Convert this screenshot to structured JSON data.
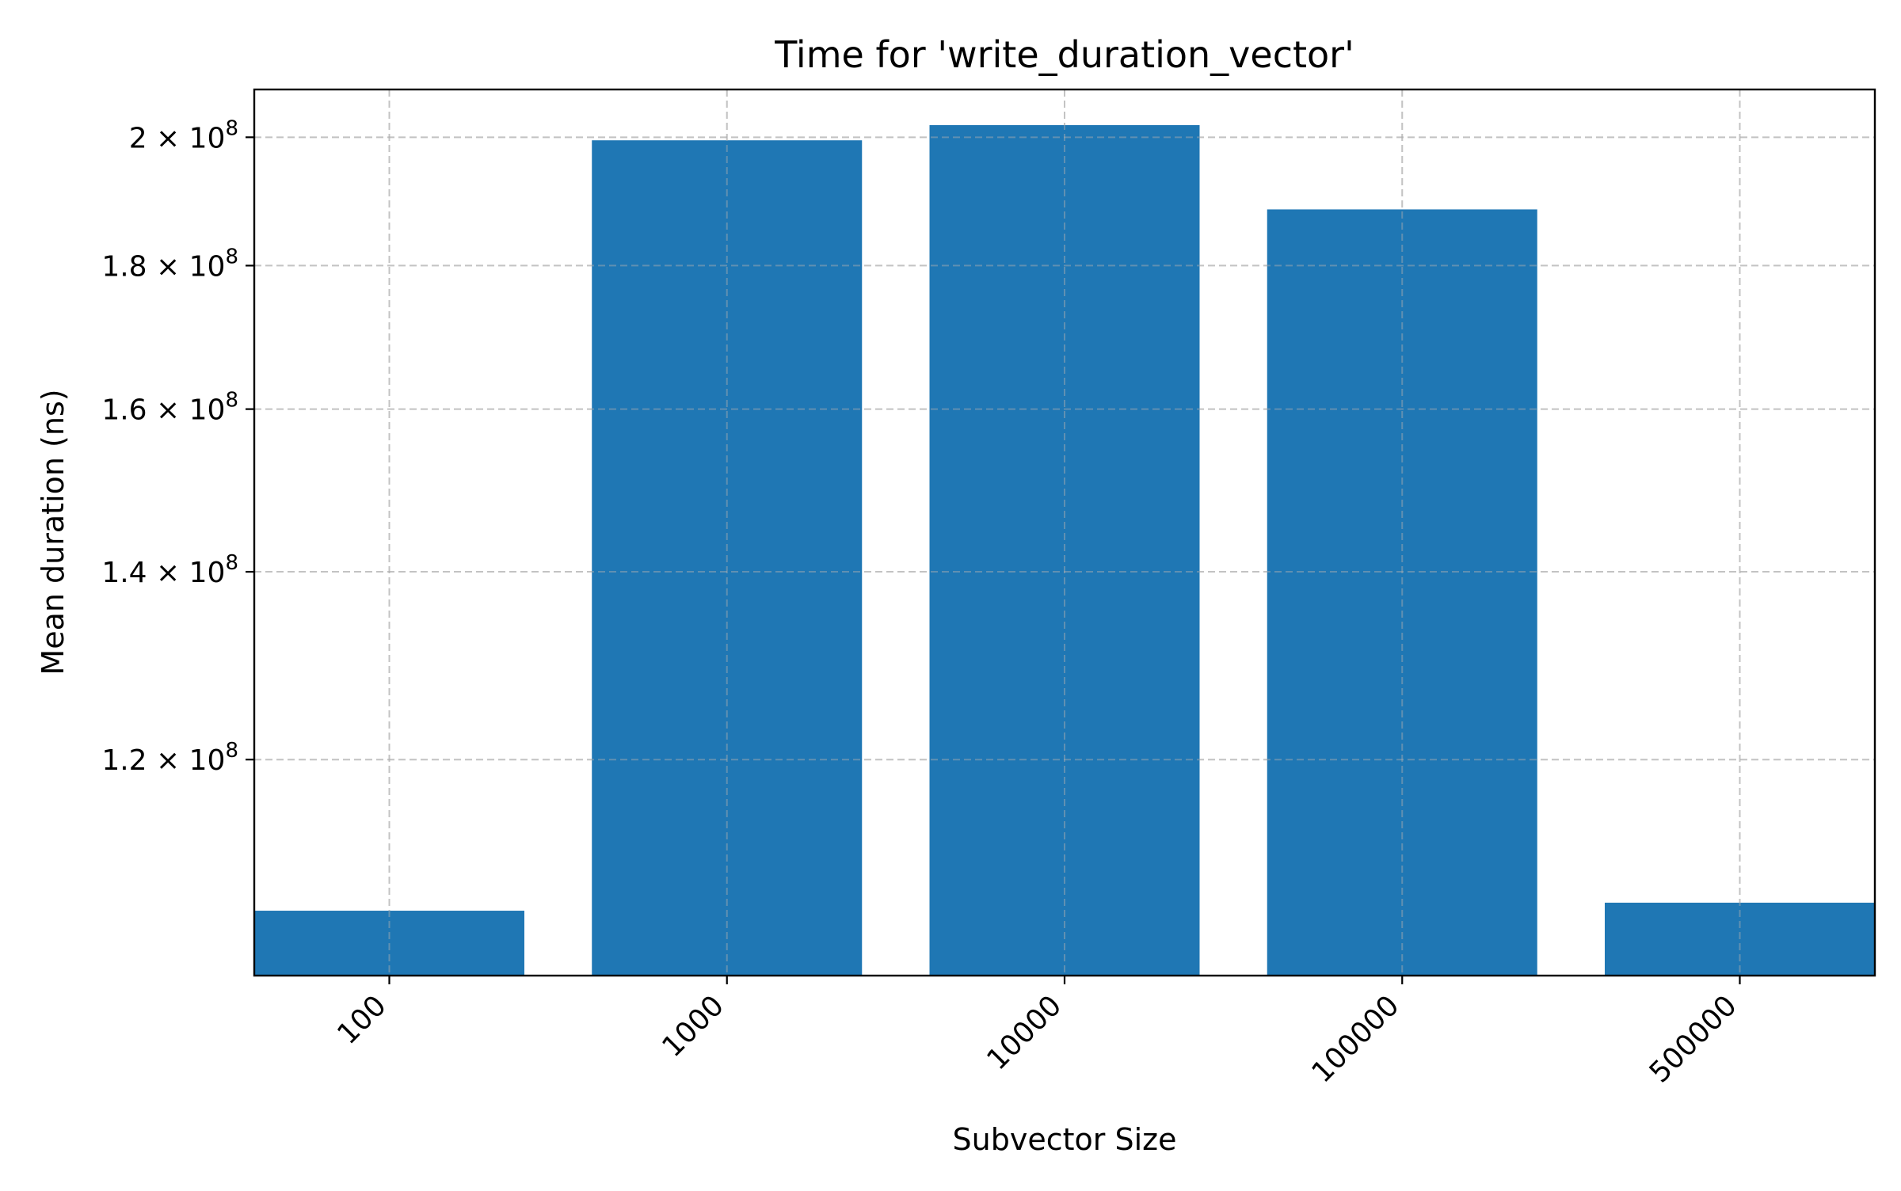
{
  "chart_data": {
    "type": "bar",
    "title": "Time for 'write_duration_vector'",
    "xlabel": "Subvector Size",
    "ylabel": "Mean duration (ns)",
    "categories": [
      "100",
      "1000",
      "10000",
      "100000",
      "500000"
    ],
    "values": [
      106000000,
      199500000,
      202000000,
      188500000,
      106700000
    ],
    "yscale": "log",
    "ylim": [
      100500000,
      208000000
    ],
    "yticks": [
      {
        "value": 120000000,
        "mantissa": "1.2",
        "base": "10",
        "exponent": "8"
      },
      {
        "value": 140000000,
        "mantissa": "1.4",
        "base": "10",
        "exponent": "8"
      },
      {
        "value": 160000000,
        "mantissa": "1.6",
        "base": "10",
        "exponent": "8"
      },
      {
        "value": 180000000,
        "mantissa": "1.8",
        "base": "10",
        "exponent": "8"
      },
      {
        "value": 200000000,
        "mantissa": "2",
        "base": "10",
        "exponent": "8"
      }
    ],
    "grid": true,
    "bar_color": "#1f77b4"
  }
}
